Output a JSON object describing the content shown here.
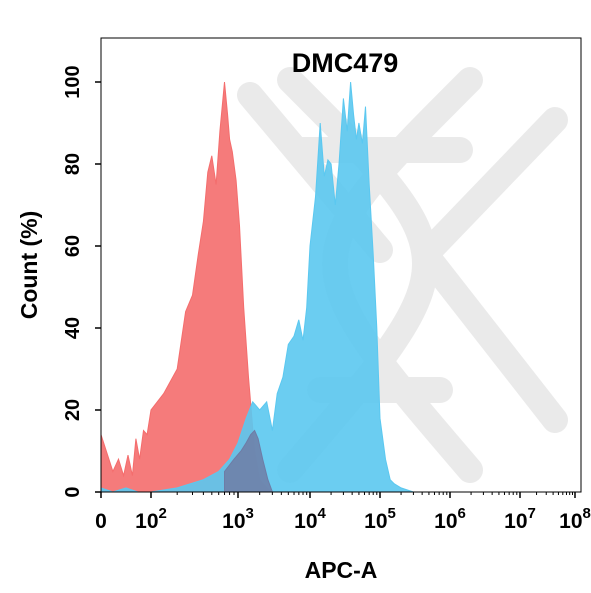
{
  "chart_data": {
    "type": "area",
    "title": "DMC479",
    "xlabel": "APC-A",
    "ylabel": "Count  (%)",
    "xscale": "log",
    "xlim": [
      1,
      100000000
    ],
    "ylim": [
      0,
      100
    ],
    "x_ticks": [
      {
        "base": "0",
        "exp": ""
      },
      {
        "base": "10",
        "exp": "2"
      },
      {
        "base": "10",
        "exp": "3"
      },
      {
        "base": "10",
        "exp": "4"
      },
      {
        "base": "10",
        "exp": "5"
      },
      {
        "base": "10",
        "exp": "6"
      },
      {
        "base": "10",
        "exp": "7"
      },
      {
        "base": "10",
        "exp": "8"
      }
    ],
    "y_ticks": [
      "0",
      "20",
      "40",
      "60",
      "80",
      "100"
    ],
    "grid": false,
    "series": [
      {
        "color": "#f46d6d",
        "x": [
          1,
          3,
          5,
          8,
          12,
          18,
          25,
          35,
          50,
          70,
          100,
          140,
          200,
          250,
          300,
          350,
          400,
          450,
          500,
          560,
          620,
          700,
          760,
          800,
          860,
          950,
          1050,
          1200,
          1400,
          1700,
          2000,
          2500,
          3000
        ],
        "y": [
          14,
          5,
          8,
          4,
          9,
          4,
          13,
          8,
          15,
          14,
          20,
          24,
          30,
          44,
          48,
          58,
          66,
          78,
          82,
          75,
          88,
          100,
          92,
          86,
          83,
          76,
          65,
          45,
          28,
          10,
          3,
          1,
          0
        ]
      },
      {
        "color": "#5bc8f0",
        "x": [
          1,
          3,
          10,
          30,
          100,
          200,
          400,
          600,
          800,
          1000,
          1300,
          1600,
          2000,
          2500,
          3000,
          3500,
          4200,
          5000,
          6000,
          7000,
          8000,
          9000,
          10000,
          12000,
          14000,
          16000,
          18000,
          20000,
          23000,
          26000,
          30000,
          34000,
          38000,
          42000,
          46000,
          50000,
          56000,
          62000,
          70000,
          80000,
          90000,
          100000,
          120000,
          140000,
          160000,
          200000,
          300000
        ],
        "y": [
          1,
          0,
          1,
          0,
          0,
          1,
          3,
          5,
          8,
          12,
          18,
          22,
          20,
          22,
          15,
          24,
          28,
          36,
          38,
          42,
          37,
          45,
          60,
          72,
          90,
          77,
          81,
          80,
          70,
          80,
          96,
          88,
          100,
          92,
          86,
          90,
          85,
          94,
          75,
          58,
          40,
          18,
          8,
          3,
          2,
          1,
          0
        ]
      },
      {
        "color": "#6e7ca6",
        "x": [
          700,
          900,
          1100,
          1300,
          1500,
          1700,
          1900,
          2200,
          2600,
          3000
        ],
        "y": [
          5,
          8,
          10,
          12,
          14,
          15,
          13,
          8,
          3,
          0
        ]
      }
    ]
  }
}
